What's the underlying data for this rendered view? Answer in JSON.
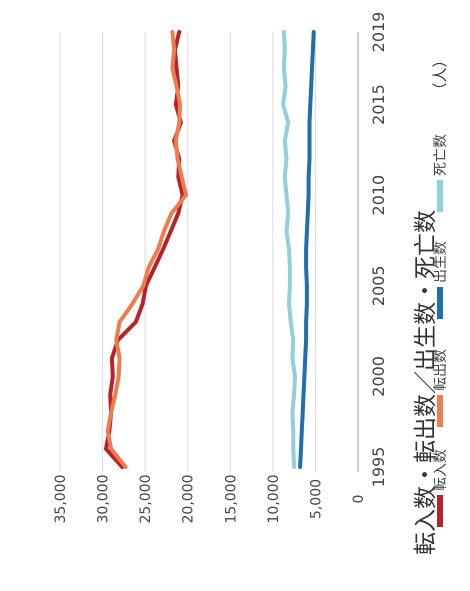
{
  "chart_data": {
    "type": "line",
    "title": "転入数・転出数／出生数・死亡数",
    "unit_label": "（人）",
    "x": [
      1995,
      1996,
      1997,
      1998,
      1999,
      2000,
      2001,
      2002,
      2003,
      2004,
      2005,
      2006,
      2007,
      2008,
      2009,
      2010,
      2011,
      2012,
      2013,
      2014,
      2015,
      2016,
      2017,
      2018,
      2019
    ],
    "x_ticks": [
      "1995",
      "2000",
      "2005",
      "2010",
      "2015",
      "2019"
    ],
    "ylim": [
      0,
      35000
    ],
    "y_ticks": [
      "0",
      "5,000",
      "10,000",
      "15,000",
      "20,000",
      "25,000",
      "30,000",
      "35,000"
    ],
    "grid": true,
    "legend_position": "bottom",
    "series": [
      {
        "name": "転入数",
        "color": "#b5242a",
        "values": [
          27700,
          29600,
          29200,
          29000,
          29100,
          28800,
          28900,
          28200,
          26100,
          25300,
          24900,
          23900,
          22900,
          22000,
          21100,
          20600,
          21100,
          21000,
          21600,
          20800,
          21400,
          21100,
          21300,
          21500,
          21000
        ]
      },
      {
        "name": "転出数",
        "color": "#ee7c4f",
        "values": [
          27300,
          29000,
          29400,
          29000,
          28500,
          28100,
          28000,
          28400,
          28000,
          26500,
          25200,
          24600,
          23500,
          22800,
          21900,
          20200,
          20700,
          21200,
          21400,
          21000,
          20900,
          21300,
          21800,
          21600,
          21800
        ]
      },
      {
        "name": "出生数",
        "color": "#1f6eb0",
        "values": [
          6800,
          6700,
          6600,
          6500,
          6400,
          6300,
          6200,
          6100,
          6100,
          6000,
          6000,
          6100,
          6100,
          6000,
          5900,
          5800,
          5800,
          5700,
          5700,
          5700,
          5600,
          5500,
          5400,
          5300,
          5200
        ]
      },
      {
        "name": "死亡数",
        "color": "#8fd0dc",
        "values": [
          7500,
          7600,
          7600,
          7700,
          7500,
          7400,
          7700,
          7600,
          7900,
          8100,
          8000,
          8000,
          8100,
          8400,
          8200,
          8400,
          8600,
          8400,
          8600,
          8200,
          8800,
          8500,
          8700,
          8600,
          8700
        ]
      }
    ]
  }
}
